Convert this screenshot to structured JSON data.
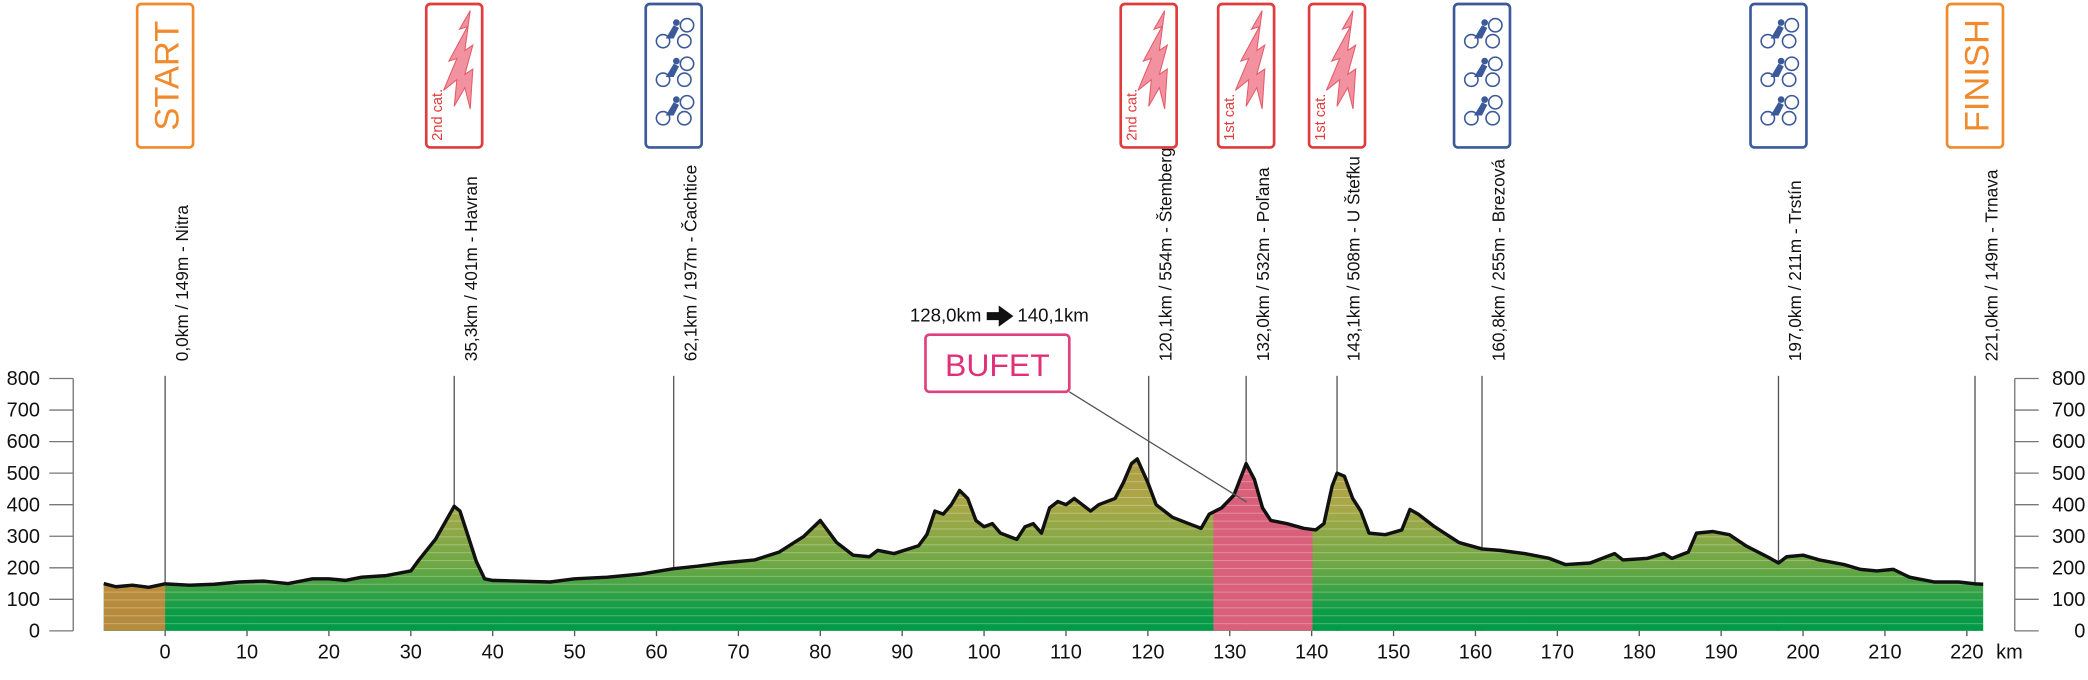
{
  "chart_data": {
    "type": "area",
    "x_label": "km",
    "xlim": [
      -7.5,
      222
    ],
    "xticks": [
      0,
      10,
      20,
      30,
      40,
      50,
      60,
      70,
      80,
      90,
      100,
      110,
      120,
      130,
      140,
      150,
      160,
      170,
      180,
      190,
      200,
      210,
      220
    ],
    "ylim": [
      0,
      800
    ],
    "yticks": [
      0,
      100,
      200,
      300,
      400,
      500,
      600,
      700,
      800
    ],
    "start_zone_color": "#c98a3c",
    "x": [
      -7.5,
      -6,
      -4,
      -2,
      0,
      3,
      6,
      9,
      12,
      15,
      18,
      20,
      22,
      24,
      27,
      30,
      31,
      33,
      35.3,
      36,
      37,
      38,
      39,
      40,
      43,
      47,
      50,
      54,
      58,
      62.1,
      65,
      68,
      72,
      75,
      78,
      80,
      82,
      84,
      86,
      87,
      89,
      92,
      93,
      94,
      95,
      96,
      97,
      98,
      99,
      100,
      101,
      102,
      104,
      105,
      106,
      107,
      108,
      109,
      110,
      111,
      112,
      113,
      114,
      116,
      117,
      118,
      118.7,
      120,
      121,
      123,
      125,
      126.5,
      127.5,
      129,
      130.5,
      132,
      133,
      134,
      135,
      137,
      139,
      140.5,
      141.5,
      142.5,
      143.1,
      144,
      145,
      146,
      147,
      149,
      151,
      152,
      153,
      155,
      158,
      160.8,
      163,
      166,
      169,
      171,
      174,
      177,
      178,
      181,
      183,
      184,
      186,
      187,
      189,
      191,
      193,
      196,
      197,
      198,
      200,
      202,
      205,
      207,
      209,
      211,
      213,
      216,
      219,
      221,
      222
    ],
    "values": [
      150,
      140,
      145,
      138,
      149,
      145,
      148,
      155,
      158,
      150,
      165,
      165,
      160,
      170,
      175,
      190,
      225,
      290,
      395,
      380,
      300,
      220,
      165,
      160,
      158,
      155,
      165,
      170,
      180,
      197,
      205,
      215,
      225,
      250,
      300,
      350,
      280,
      240,
      235,
      255,
      245,
      270,
      305,
      380,
      370,
      400,
      445,
      420,
      350,
      330,
      340,
      310,
      290,
      330,
      340,
      310,
      390,
      410,
      400,
      420,
      400,
      380,
      400,
      420,
      470,
      530,
      545,
      470,
      400,
      360,
      340,
      325,
      370,
      390,
      430,
      530,
      480,
      390,
      350,
      340,
      325,
      320,
      340,
      460,
      500,
      490,
      420,
      380,
      310,
      305,
      320,
      385,
      370,
      330,
      280,
      260,
      255,
      245,
      230,
      210,
      215,
      245,
      225,
      230,
      245,
      230,
      250,
      310,
      315,
      305,
      270,
      230,
      215,
      235,
      240,
      225,
      210,
      195,
      190,
      195,
      170,
      155,
      155,
      149,
      148
    ],
    "waypoints": [
      {
        "km": 0,
        "label": "0,0km /  149m - Nitra",
        "badge": "START",
        "color": "#f08a2c"
      },
      {
        "km": 35.3,
        "label": "35,3km /  401m - Havran",
        "badge": "2nd cat.",
        "color": "#e03c3c"
      },
      {
        "km": 62.1,
        "label": "62,1km / 197m - Čachtice",
        "badge": null,
        "color": "#3c5a9a"
      },
      {
        "km": 120.1,
        "label": "120,1km / 554m - Štemberg",
        "badge": "2nd cat.",
        "color": "#e03c3c"
      },
      {
        "km": 132,
        "label": "132,0km / 532m - Poľana",
        "badge": "1st cat.",
        "color": "#e03c3c"
      },
      {
        "km": 143.1,
        "label": "143,1km / 508m - U Štefku",
        "badge": "1st cat.",
        "color": "#e03c3c"
      },
      {
        "km": 160.8,
        "label": "160,8km / 255m - Brezová",
        "badge": null,
        "color": "#3c5a9a"
      },
      {
        "km": 197,
        "label": "197,0km / 211m - Trstín",
        "badge": null,
        "color": "#3c5a9a"
      },
      {
        "km": 221,
        "label": "221,0km / 149m - Trnava",
        "badge": "FINISH",
        "color": "#f08a2c"
      }
    ],
    "feed_zone": {
      "label": "BUFET",
      "from": 128,
      "to": 140.1,
      "from_label": "128,0km",
      "to_label": "140,1km",
      "color": "#d9607a"
    }
  }
}
